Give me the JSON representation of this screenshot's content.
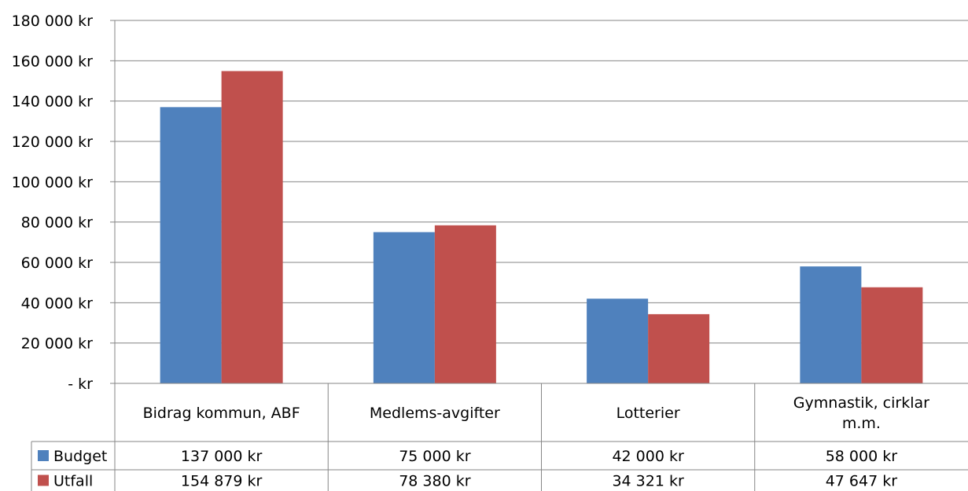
{
  "chart_data": {
    "type": "bar",
    "categories": [
      [
        "Bidrag kommun, ABF"
      ],
      [
        "Medlems-avgifter"
      ],
      [
        "Lotterier"
      ],
      [
        "Gymnastik, cirklar",
        "m.m."
      ]
    ],
    "series": [
      {
        "name": "Budget",
        "color": "#4F81BD",
        "values": [
          137000,
          75000,
          42000,
          58000
        ],
        "table_values": [
          "137 000 kr",
          "75 000 kr",
          "42 000 kr",
          "58 000 kr"
        ]
      },
      {
        "name": "Utfall",
        "color": "#C0504D",
        "values": [
          154879,
          78380,
          34321,
          47647
        ],
        "table_values": [
          "154 879 kr",
          "78 380 kr",
          "34 321 kr",
          "47 647 kr"
        ]
      }
    ],
    "ylim": [
      0,
      180000
    ],
    "yticks": [
      0,
      20000,
      40000,
      60000,
      80000,
      100000,
      120000,
      140000,
      160000,
      180000
    ],
    "ytick_labels": [
      "-  kr",
      "20 000 kr",
      "40 000 kr",
      "60 000 kr",
      "80 000 kr",
      "100 000 kr",
      "120 000 kr",
      "140 000 kr",
      "160 000 kr",
      "180 000 kr"
    ],
    "grid": true,
    "legend": "data-table",
    "title": "",
    "xlabel": "",
    "ylabel": ""
  }
}
